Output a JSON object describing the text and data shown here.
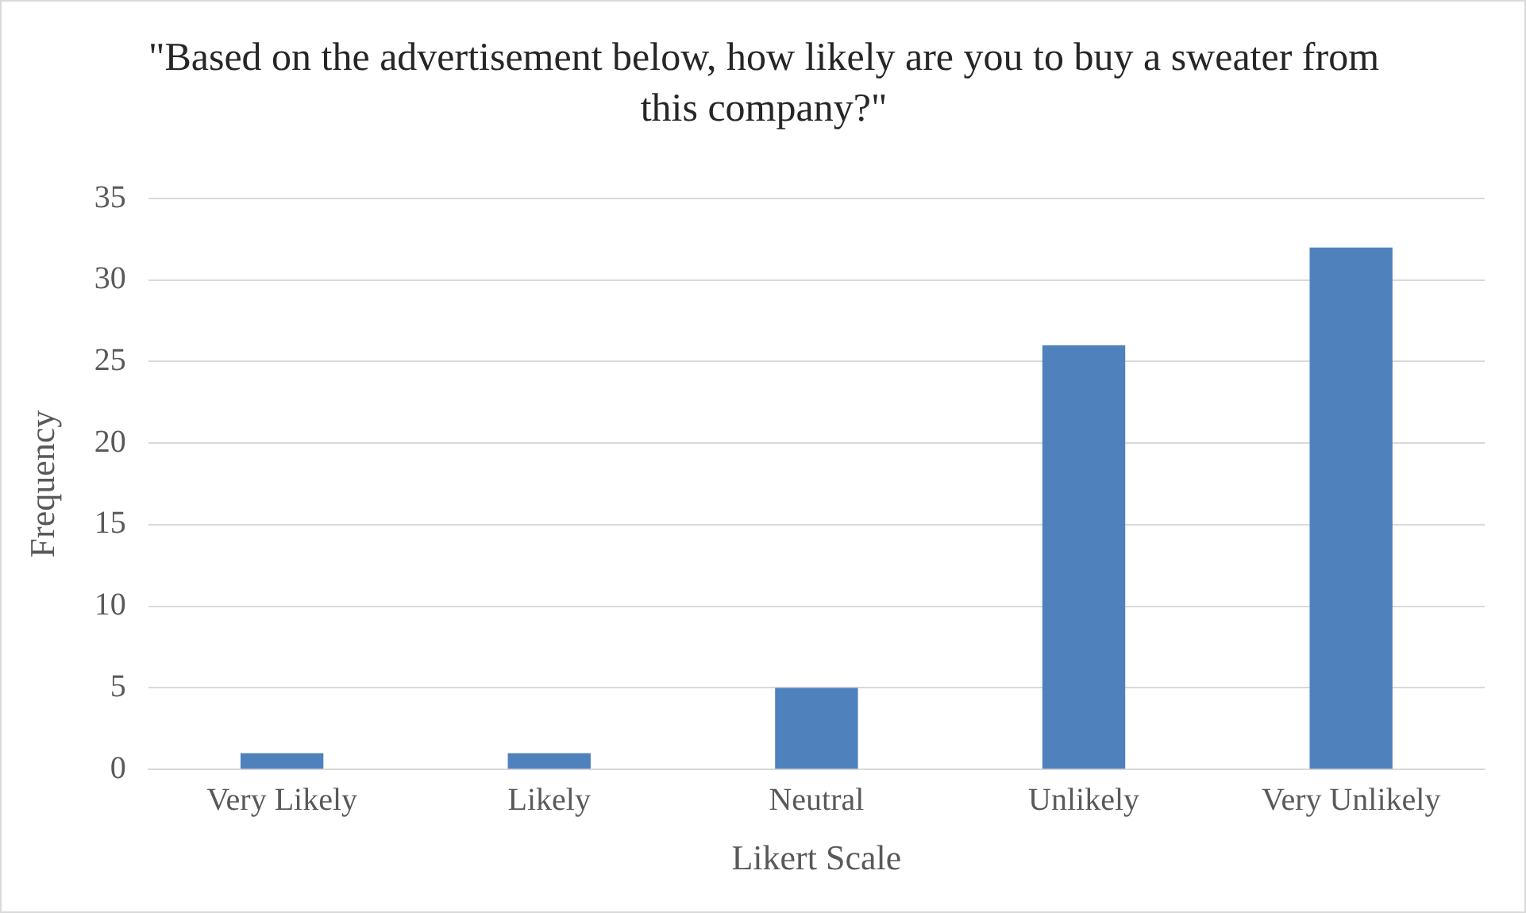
{
  "chart_data": {
    "type": "bar",
    "title": "\"Based on the advertisement below, how likely are you to buy a sweater from this company?\"",
    "xlabel": "Likert Scale",
    "ylabel": "Frequency",
    "categories": [
      "Very Likely",
      "Likely",
      "Neutral",
      "Unlikely",
      "Very Unlikely"
    ],
    "values": [
      1,
      1,
      5,
      26,
      32
    ],
    "color": "#4f81bd",
    "ylim": [
      0,
      35
    ],
    "yticks": [
      0,
      5,
      10,
      15,
      20,
      25,
      30,
      35
    ],
    "grid": "y",
    "legend": false
  }
}
